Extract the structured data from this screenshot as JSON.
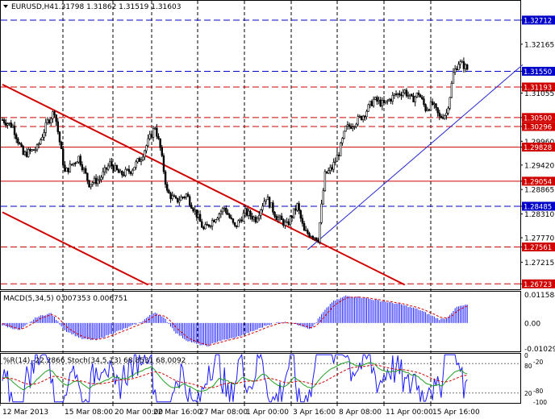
{
  "header": {
    "symbol": "EURUSD,H4",
    "ohlc": "1.31798 1.31862 1.31519 1.31603"
  },
  "colors": {
    "background": "#ffffff",
    "candle": "#000000",
    "support_resistance": "#d00000",
    "key_level": "#0000c8",
    "trend_channel": "#d00000",
    "trend_up": "#2a2ad0",
    "macd_hist": "#1a1aff",
    "macd_signal": "#d00000",
    "wpr": "#1a1aff",
    "stoch_main": "#20a020",
    "stoch_signal": "#d00000",
    "vgrid": "#000000"
  },
  "main_axis": {
    "labels": [
      "1.32712",
      "1.32165",
      "1.31550",
      "1.31193",
      "1.31055",
      "1.30500",
      "1.30296",
      "1.29960",
      "1.29828",
      "1.29420",
      "1.29054",
      "1.28865",
      "1.28485",
      "1.28310",
      "1.27770",
      "1.27561",
      "1.27215",
      "1.26723"
    ],
    "boxed": {
      "1.32712": "key",
      "1.31550": "key",
      "1.31193": "sr",
      "1.30500": "sr",
      "1.30296": "sr",
      "1.29828": "sr",
      "1.29054": "sr",
      "1.28485": "key",
      "1.27561": "sr",
      "1.26723": "sr"
    },
    "ylim": [
      1.266,
      1.3315
    ]
  },
  "x_axis": {
    "labels": [
      "12 Mar 2013",
      "15 Mar 08:00",
      "20 Mar 00:00",
      "22 Mar 16:00",
      "27 Mar 08:00",
      "1 Apr 00:00",
      "3 Apr 16:00",
      "8 Apr 08:00",
      "11 Apr 00:00",
      "15 Apr 16:00"
    ],
    "bar_count": 200
  },
  "macd": {
    "title": "MACD(5,34,5) 0.007353 0.006751",
    "axis_labels": [
      "0.011584",
      "0.00",
      "-0.010298"
    ],
    "ylim": [
      -0.0115,
      0.0127
    ]
  },
  "oscillators": {
    "title": "%R(14) -22.2866 Stoch(34,5,13) 68.8531 68.0092",
    "axis_labels": [
      "0",
      "-20",
      "80",
      "-80",
      "20",
      "-100"
    ],
    "ylim": [
      0,
      100
    ]
  },
  "chart_data": {
    "type": "candlestick",
    "x_labels": [
      "12 Mar 2013",
      "15 Mar 08:00",
      "20 Mar 00:00",
      "22 Mar 16:00",
      "27 Mar 08:00",
      "1 Apr 00:00",
      "3 Apr 16:00",
      "8 Apr 08:00",
      "11 Apr 00:00",
      "15 Apr 16:00"
    ],
    "price_anchors": [
      [
        0,
        1.3045
      ],
      [
        6,
        1.303
      ],
      [
        12,
        1.2965
      ],
      [
        20,
        1.298
      ],
      [
        26,
        1.304
      ],
      [
        30,
        1.3065
      ],
      [
        36,
        1.2925
      ],
      [
        44,
        1.296
      ],
      [
        50,
        1.29
      ],
      [
        56,
        1.291
      ],
      [
        62,
        1.2945
      ],
      [
        68,
        1.292
      ],
      [
        74,
        1.293
      ],
      [
        80,
        1.296
      ],
      [
        84,
        1.2995
      ],
      [
        88,
        1.303
      ],
      [
        91,
        1.298
      ],
      [
        95,
        1.288
      ],
      [
        100,
        1.286
      ],
      [
        106,
        1.2875
      ],
      [
        112,
        1.283
      ],
      [
        116,
        1.2795
      ],
      [
        122,
        1.282
      ],
      [
        128,
        1.2845
      ],
      [
        134,
        1.28
      ],
      [
        140,
        1.2835
      ],
      [
        146,
        1.282
      ],
      [
        152,
        1.287
      ],
      [
        158,
        1.2825
      ],
      [
        164,
        1.2805
      ],
      [
        170,
        1.285
      ],
      [
        174,
        1.279
      ],
      [
        178,
        1.2785
      ],
      [
        182,
        1.2775
      ],
      [
        186,
        1.292
      ],
      [
        190,
        1.2935
      ],
      [
        194,
        1.297
      ],
      [
        198,
        1.3025
      ],
      [
        202,
        1.3035
      ],
      [
        208,
        1.3055
      ],
      [
        214,
        1.309
      ],
      [
        220,
        1.308
      ],
      [
        226,
        1.31
      ],
      [
        232,
        1.311
      ],
      [
        236,
        1.309
      ],
      [
        240,
        1.3105
      ],
      [
        244,
        1.307
      ],
      [
        248,
        1.308
      ],
      [
        252,
        1.305
      ],
      [
        256,
        1.306
      ],
      [
        258,
        1.31
      ],
      [
        260,
        1.315
      ],
      [
        263,
        1.3175
      ],
      [
        266,
        1.3168
      ],
      [
        268,
        1.316
      ]
    ],
    "horizontal_levels": {
      "key": [
        1.32712,
        1.3155,
        1.28485
      ],
      "support_resistance": [
        1.31193,
        1.305,
        1.30296,
        1.29828,
        1.29054,
        1.27561,
        1.26723
      ]
    },
    "channel_lines": [
      {
        "from": [
          0,
          1.3125
        ],
        "to": [
          232,
          1.267
        ]
      },
      {
        "from": [
          0,
          1.2835
        ],
        "to": [
          84,
          1.267
        ]
      }
    ],
    "trend_line": {
      "from": [
        176,
        1.275
      ],
      "to": [
        300,
        1.317
      ]
    },
    "macd_anchors": [
      [
        0,
        -0.001
      ],
      [
        10,
        -0.003
      ],
      [
        20,
        0.0025
      ],
      [
        28,
        0.004
      ],
      [
        36,
        -0.003
      ],
      [
        46,
        -0.0065
      ],
      [
        54,
        -0.007
      ],
      [
        64,
        -0.004
      ],
      [
        72,
        -0.002
      ],
      [
        80,
        0.0005
      ],
      [
        88,
        0.0045
      ],
      [
        94,
        0.0015
      ],
      [
        100,
        -0.004
      ],
      [
        106,
        -0.007
      ],
      [
        112,
        -0.0085
      ],
      [
        118,
        -0.0095
      ],
      [
        124,
        -0.0075
      ],
      [
        134,
        -0.006
      ],
      [
        144,
        -0.0035
      ],
      [
        152,
        -0.001
      ],
      [
        160,
        0.0005
      ],
      [
        166,
        0.0,
        0
      ],
      [
        172,
        -0.001
      ],
      [
        178,
        -0.0025
      ],
      [
        184,
        0.0035
      ],
      [
        190,
        0.0085
      ],
      [
        198,
        0.011
      ],
      [
        206,
        0.0105
      ],
      [
        218,
        0.009
      ],
      [
        230,
        0.0075
      ],
      [
        240,
        0.0055
      ],
      [
        246,
        0.0035
      ],
      [
        252,
        0.0015
      ],
      [
        256,
        0.002
      ],
      [
        262,
        0.0065
      ],
      [
        268,
        0.0074
      ]
    ]
  }
}
